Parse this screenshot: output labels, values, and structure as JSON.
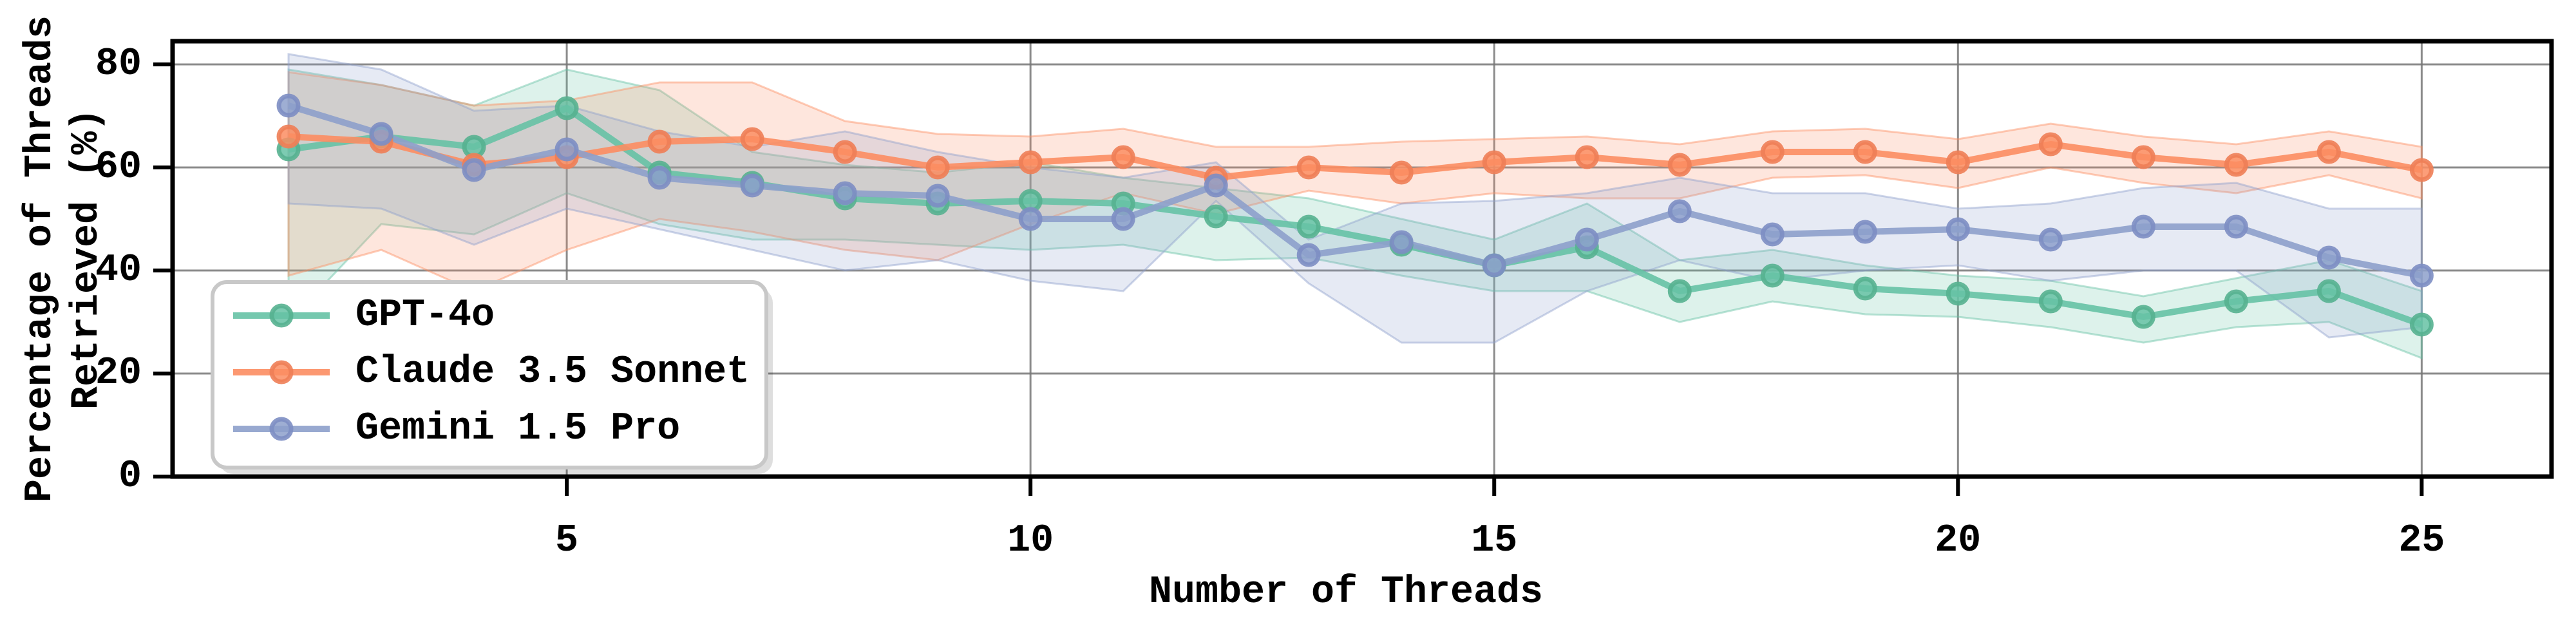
{
  "figure": {
    "background": "#ffffff",
    "description": "Line chart with confidence bands comparing three models"
  },
  "chart_data": {
    "type": "line",
    "title": "",
    "xlabel": "Number of Threads",
    "ylabel_lines": [
      "Percentage of Threads",
      "Retrieved (%)"
    ],
    "x": [
      2,
      3,
      4,
      5,
      6,
      7,
      8,
      9,
      10,
      11,
      12,
      13,
      14,
      15,
      16,
      17,
      18,
      19,
      20,
      21,
      22,
      23,
      24,
      25
    ],
    "xticks": [
      5,
      10,
      15,
      20,
      25
    ],
    "yticks": [
      0,
      20,
      40,
      60,
      80
    ],
    "xlim": [
      0.75,
      26.4
    ],
    "ylim": [
      0,
      84.5
    ],
    "grid": true,
    "grid_color": "#777777",
    "legend_position": "lower-left",
    "series": [
      {
        "name": "GPT-4o",
        "color": "#66c2a5",
        "edge": "#56b190",
        "values": [
          63.5,
          66,
          64,
          71.5,
          59,
          57,
          54,
          53,
          53.5,
          53,
          50.5,
          48.5,
          45,
          41,
          44.5,
          36,
          39,
          36.5,
          35.5,
          34,
          31,
          34,
          36,
          29.5
        ],
        "band_lower": [
          30,
          49,
          47,
          55,
          49,
          46,
          46,
          45,
          44,
          45,
          42,
          42.5,
          39,
          36,
          36,
          30,
          34,
          31.5,
          31,
          29,
          26,
          29,
          30,
          23
        ],
        "band_upper": [
          79,
          76,
          72,
          79,
          75,
          63,
          60.5,
          59,
          61,
          58,
          56,
          54,
          50,
          46,
          53,
          42,
          44,
          41,
          39,
          38,
          35,
          38.5,
          42,
          36
        ]
      },
      {
        "name": "Claude 3.5 Sonnet",
        "color": "#fc8d62",
        "edge": "#ee7e57",
        "values": [
          66,
          65,
          60.5,
          62,
          65,
          65.5,
          63,
          60,
          61,
          62,
          58,
          60,
          59,
          61,
          62,
          60.5,
          63,
          63,
          61,
          64.5,
          62,
          60.5,
          63,
          59.5
        ],
        "band_lower": [
          39,
          44,
          36,
          44,
          50,
          47.5,
          44,
          42,
          49,
          55,
          51,
          55.5,
          53,
          55,
          54,
          54,
          58,
          58.5,
          56,
          60,
          57,
          55,
          58.5,
          54
        ],
        "band_upper": [
          78.5,
          76,
          72,
          73,
          76.5,
          76.5,
          69,
          66.5,
          66,
          67.5,
          64,
          64,
          65,
          65.5,
          66,
          64.5,
          67,
          67.5,
          65.5,
          68.5,
          66,
          64.5,
          67,
          64
        ]
      },
      {
        "name": "Gemini 1.5 Pro",
        "color": "#8da0cb",
        "edge": "#7d8ec3",
        "values": [
          72,
          66.5,
          59.5,
          63.5,
          58,
          56.5,
          55,
          54.5,
          50,
          50,
          56.5,
          43,
          45.5,
          41,
          46,
          51.5,
          47,
          47.5,
          48,
          46,
          48.5,
          48.5,
          42.5,
          39
        ],
        "band_lower": [
          53,
          52,
          45,
          52,
          48,
          44,
          40,
          42,
          38,
          36,
          53.5,
          37.5,
          26,
          26,
          36,
          42,
          38,
          40,
          41,
          38,
          40,
          40,
          27,
          29
        ],
        "band_upper": [
          82,
          79,
          71,
          72,
          67,
          64,
          67,
          63,
          60,
          58,
          61,
          46,
          53,
          53.5,
          55,
          58,
          55,
          55,
          52,
          53,
          56,
          57,
          52,
          52
        ]
      }
    ],
    "legend": {
      "labels": [
        "GPT-4o",
        "Claude 3.5 Sonnet",
        "Gemini 1.5 Pro"
      ],
      "border_color": "#c8c8c8",
      "fill": "#ffffff"
    }
  }
}
